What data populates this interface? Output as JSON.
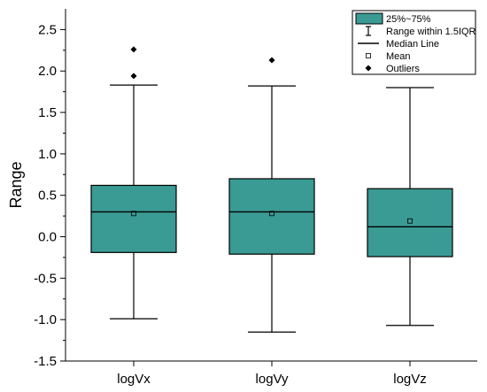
{
  "chart_data": {
    "type": "box",
    "ylabel": "Range",
    "xlabel": "",
    "ylim": [
      -1.5,
      2.75
    ],
    "yticks": [
      -1.5,
      -1.0,
      -0.5,
      0.0,
      0.5,
      1.0,
      1.5,
      2.0,
      2.5
    ],
    "ytick_labels": [
      "-1.5",
      "-1.0",
      "-0.5",
      "0.0",
      "0.5",
      "1.0",
      "1.5",
      "2.0",
      "2.5"
    ],
    "categories": [
      "logVx",
      "logVy",
      "logVz"
    ],
    "box_color": "#3A9A94",
    "boxes": [
      {
        "category": "logVx",
        "whisker_low": -0.99,
        "q1": -0.19,
        "median": 0.3,
        "q3": 0.62,
        "whisker_high": 1.83,
        "mean": 0.28,
        "outliers": [
          1.94,
          2.26
        ]
      },
      {
        "category": "logVy",
        "whisker_low": -1.15,
        "q1": -0.21,
        "median": 0.3,
        "q3": 0.7,
        "whisker_high": 1.82,
        "mean": 0.28,
        "outliers": [
          2.13
        ]
      },
      {
        "category": "logVz",
        "whisker_low": -1.07,
        "q1": -0.24,
        "median": 0.12,
        "q3": 0.58,
        "whisker_high": 1.8,
        "mean": 0.19,
        "outliers": []
      }
    ],
    "legend": {
      "placement": "top-right",
      "entries": [
        {
          "kind": "box",
          "label": "25%~75%"
        },
        {
          "kind": "whisker",
          "label": "Range within 1.5IQR"
        },
        {
          "kind": "median",
          "label": "Median Line"
        },
        {
          "kind": "mean",
          "label": "Mean"
        },
        {
          "kind": "outlier",
          "label": "Outliers"
        }
      ]
    }
  }
}
